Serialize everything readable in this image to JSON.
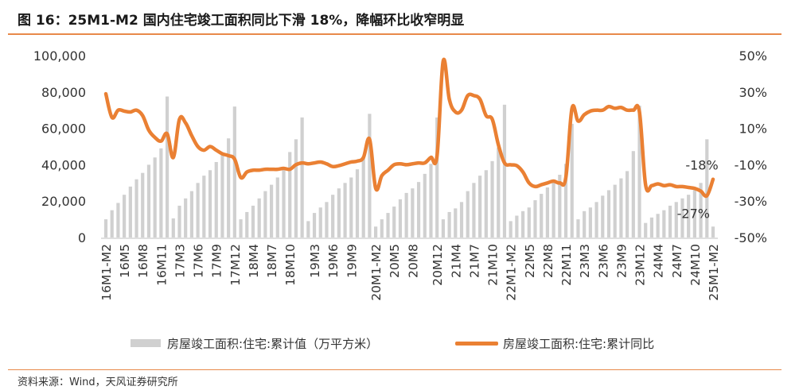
{
  "title": "图 16：25M1-M2 国内住宅竣工面积同比下滑 18%，降幅环比收窄明显",
  "source": "资料来源：Wind，天风证券研究所",
  "colors": {
    "bar": "#d0d0d0",
    "line": "#ea8033",
    "rule": "#e8894a"
  },
  "chart_data": {
    "type": "bar",
    "title": "",
    "xlabel": "",
    "ylabel_left": "",
    "ylabel_right": "",
    "left_axis": {
      "ylim": [
        0,
        100000
      ],
      "ticks": [
        "0",
        "20,000",
        "40,000",
        "60,000",
        "80,000",
        "100,000"
      ]
    },
    "right_axis": {
      "ylim": [
        -50,
        50
      ],
      "ticks": [
        "-50%",
        "-30%",
        "-10%",
        "10%",
        "30%",
        "50%"
      ]
    },
    "grid": false,
    "legend_position": "bottom",
    "x_tick_labels": [
      "16M1-M2",
      "16M5",
      "16M8",
      "16M11",
      "17M3",
      "17M6",
      "17M9",
      "17M12",
      "18M4",
      "18M7",
      "18M10",
      "19M3",
      "19M6",
      "19M9",
      "20M1-M2",
      "20M5",
      "20M8",
      "20M12",
      "21M4",
      "21M7",
      "21M10",
      "22M1-M2",
      "22M5",
      "22M8",
      "22M11",
      "23M3",
      "23M6",
      "23M9",
      "23M12",
      "24M4",
      "24M7",
      "24M10",
      "25M1-M2"
    ],
    "categories": [
      "16M1-M2",
      "16M3",
      "16M4",
      "16M5",
      "16M6",
      "16M7",
      "16M8",
      "16M9",
      "16M10",
      "16M11",
      "16M12",
      "17M1-M2",
      "17M3",
      "17M4",
      "17M5",
      "17M6",
      "17M7",
      "17M8",
      "17M9",
      "17M10",
      "17M11",
      "17M12",
      "18M1-M2",
      "18M3",
      "18M4",
      "18M5",
      "18M6",
      "18M7",
      "18M8",
      "18M9",
      "18M10",
      "18M11",
      "18M12",
      "19M1-M2",
      "19M3",
      "19M4",
      "19M5",
      "19M6",
      "19M7",
      "19M8",
      "19M9",
      "19M10",
      "19M11",
      "19M12",
      "20M1-M2",
      "20M3",
      "20M4",
      "20M5",
      "20M6",
      "20M7",
      "20M8",
      "20M9",
      "20M10",
      "20M11",
      "20M12",
      "21M1-M2",
      "21M3",
      "21M4",
      "21M5",
      "21M6",
      "21M7",
      "21M8",
      "21M9",
      "21M10",
      "21M11",
      "21M12",
      "22M1-M2",
      "22M3",
      "22M4",
      "22M5",
      "22M6",
      "22M7",
      "22M8",
      "22M9",
      "22M10",
      "22M11",
      "22M12",
      "23M1-M2",
      "23M3",
      "23M4",
      "23M5",
      "23M6",
      "23M7",
      "23M8",
      "23M9",
      "23M10",
      "23M11",
      "23M12",
      "24M1-M2",
      "24M3",
      "24M4",
      "24M5",
      "24M6",
      "24M7",
      "24M8",
      "24M9",
      "24M10",
      "24M11",
      "24M12",
      "25M1-M2"
    ],
    "series": [
      {
        "name": "房屋竣工面积:住宅:累计值（万平方米）",
        "type": "bar",
        "axis": "left",
        "values": [
          10000,
          15000,
          19000,
          23500,
          28000,
          32000,
          35500,
          40000,
          44000,
          49000,
          77500,
          10500,
          17500,
          21500,
          25500,
          30000,
          34000,
          37000,
          41500,
          45500,
          54500,
          72000,
          10000,
          14000,
          17500,
          21500,
          25500,
          29000,
          33000,
          37000,
          47000,
          54000,
          66000,
          9000,
          13500,
          16500,
          19500,
          23500,
          27000,
          30000,
          33000,
          37500,
          44000,
          68000,
          6000,
          10000,
          13500,
          17000,
          21000,
          24500,
          27000,
          30500,
          35000,
          40500,
          66000,
          10000,
          14000,
          16000,
          19500,
          25500,
          30000,
          34000,
          37000,
          42000,
          49500,
          73000,
          9000,
          12000,
          14500,
          16500,
          20500,
          24000,
          27500,
          31000,
          34500,
          40500,
          62500,
          10000,
          14500,
          16500,
          19500,
          23000,
          26000,
          29000,
          32500,
          36500,
          47500,
          72500,
          8000,
          11000,
          13000,
          15000,
          17500,
          19500,
          21500,
          23500,
          26000,
          30000,
          54000,
          6000
        ]
      },
      {
        "name": "房屋竣工面积:住宅:累计同比",
        "type": "line",
        "axis": "right",
        "values": [
          29,
          16,
          20,
          19.5,
          19,
          20,
          17,
          9,
          5,
          3,
          7,
          -6,
          15,
          13,
          6,
          0,
          -2,
          0,
          -2,
          -4,
          -5,
          -7,
          -17,
          -14,
          -13,
          -13,
          -12.5,
          -12.5,
          -12.5,
          -12,
          -12.5,
          -10,
          -9,
          -9.5,
          -9,
          -8.5,
          -9.5,
          -11,
          -10.5,
          -9.5,
          -8.5,
          -8,
          -6,
          4,
          -23,
          -16,
          -13,
          -10,
          -9.5,
          -10,
          -9.5,
          -9,
          -9,
          -6,
          -5,
          47,
          26,
          19,
          20,
          28,
          28,
          26,
          17,
          15,
          1,
          -9,
          -10,
          -10.5,
          -14,
          -20,
          -22,
          -21,
          -20,
          -19,
          -20,
          -17,
          21,
          14,
          17.5,
          19.5,
          20,
          20,
          22,
          21,
          21.5,
          20,
          20,
          19,
          -21,
          -21.5,
          -20.5,
          -21.5,
          -21,
          -22,
          -22,
          -22.5,
          -23,
          -24.5,
          -27,
          -18
        ]
      }
    ],
    "annotations": [
      {
        "text": "-18%",
        "category": "25M1-M2",
        "value": -18
      },
      {
        "text": "-27%",
        "category": "24M12",
        "value": -27
      }
    ]
  }
}
